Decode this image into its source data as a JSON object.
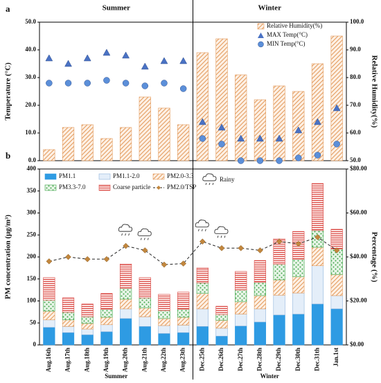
{
  "chart_data": [
    {
      "type": "combo",
      "panel_label": "a",
      "groups": [
        "Summer",
        "Winter"
      ],
      "ylabel": "Temperature (°C)",
      "y2label": "Relative Humidity(%)",
      "categories": [
        null,
        null,
        null,
        null,
        null,
        null,
        null,
        null,
        null,
        null,
        null,
        null,
        null,
        null,
        null,
        null
      ],
      "ylim": [
        0,
        50
      ],
      "yticks": [
        {
          "value": 0,
          "label": "0.0"
        },
        {
          "value": 10,
          "label": "10.0"
        },
        {
          "value": 20,
          "label": "20.0"
        },
        {
          "value": 30,
          "label": "30.0"
        },
        {
          "value": 40,
          "label": "40.0"
        },
        {
          "value": 50,
          "label": "50.0"
        }
      ],
      "y2lim": [
        50,
        100
      ],
      "y2ticks": [
        {
          "value": 50,
          "label": "50.0"
        },
        {
          "value": 60,
          "label": "60.0"
        },
        {
          "value": 70,
          "label": "70.0"
        },
        {
          "value": 80,
          "label": "80.0"
        },
        {
          "value": 90,
          "label": "90.0"
        },
        {
          "value": 100,
          "label": "100.0"
        }
      ],
      "series": [
        {
          "name": "Relative Humidity(%)",
          "type": "bar",
          "axis": "y2",
          "color": "#e39a5b",
          "pattern": "hatch",
          "values": [
            54,
            62,
            63,
            58,
            62,
            73,
            69,
            63,
            89,
            94,
            81,
            72,
            77,
            75,
            85,
            95
          ]
        },
        {
          "name": "MAX Temp(°C)",
          "type": "scatter",
          "marker": "triangle",
          "color": "#4a72c4",
          "values": [
            37,
            35,
            37,
            39,
            38,
            34,
            36,
            36,
            14,
            12,
            8,
            8,
            8,
            11,
            14,
            19
          ]
        },
        {
          "name": "MIN Temp(°C)",
          "type": "scatter",
          "marker": "circle",
          "color": "#5b8fd9",
          "values": [
            28,
            28,
            28,
            29,
            28,
            27,
            28,
            26,
            8,
            6,
            0,
            0,
            0,
            1,
            2,
            6
          ]
        }
      ]
    },
    {
      "type": "stacked_bar",
      "panel_label": "b",
      "groups": [
        "Summer",
        "Winter"
      ],
      "ylabel": "PM concentration (μg/m³)",
      "y2label": "Percentage (%)",
      "rainy_label": "Rainy",
      "rainy": [
        false,
        false,
        false,
        false,
        true,
        true,
        false,
        false,
        true,
        true,
        false,
        false,
        false,
        false,
        false,
        false
      ],
      "categories": [
        "Aug.16th",
        "Aug.17th",
        "Aug.18th",
        "Aug.19th",
        "Aug.20th",
        "Aug.21th",
        "Aug.22th",
        "Aug.23th",
        "Dec.25th",
        "Dec.26th",
        "Dec.27th",
        "Dec.28th",
        "Dec.29th",
        "Dec.30th",
        "Dec.31th",
        "Jan.1st"
      ],
      "ylim": [
        0,
        400
      ],
      "yticks": [
        0,
        50,
        100,
        150,
        200,
        250,
        300,
        350,
        400
      ],
      "y2lim": [
        0,
        80
      ],
      "y2ticks": [
        {
          "value": 0,
          "label": "$0.00"
        },
        {
          "value": 20,
          "label": "$20.00"
        },
        {
          "value": 40,
          "label": "$40.00"
        },
        {
          "value": 60,
          "label": "$60.00"
        },
        {
          "value": 80,
          "label": "$80.00"
        }
      ],
      "series": [
        {
          "name": "PM1.1",
          "type": "bar",
          "color": "#2e9be3",
          "pattern": "solid",
          "values": [
            40,
            28,
            23,
            30,
            60,
            42,
            26,
            28,
            42,
            20,
            43,
            52,
            68,
            70,
            93,
            82
          ]
        },
        {
          "name": "PM1.1-2.0",
          "type": "bar",
          "color": "#8fb4dc",
          "pattern": "light",
          "values": [
            17,
            14,
            13,
            16,
            22,
            22,
            18,
            17,
            40,
            18,
            27,
            30,
            45,
            48,
            87,
            30
          ]
        },
        {
          "name": "PM2.0-3.3",
          "type": "bar",
          "color": "#e39a5b",
          "pattern": "hatch",
          "values": [
            20,
            15,
            13,
            17,
            22,
            20,
            16,
            18,
            35,
            18,
            28,
            30,
            35,
            37,
            42,
            48
          ]
        },
        {
          "name": "PM3.3-7.0",
          "type": "bar",
          "color": "#3fa548",
          "pattern": "dots",
          "values": [
            25,
            17,
            15,
            18,
            25,
            23,
            18,
            18,
            24,
            13,
            27,
            30,
            35,
            40,
            38,
            58
          ]
        },
        {
          "name": "Coarse particle",
          "type": "bar",
          "color": "#d9443f",
          "pattern": "hlines",
          "values": [
            51,
            33,
            29,
            36,
            55,
            46,
            37,
            39,
            34,
            19,
            42,
            50,
            58,
            63,
            107,
            45
          ]
        },
        {
          "name": "PM2.0/TSP",
          "type": "line",
          "axis": "y2",
          "color": "#c2873e",
          "values": [
            38,
            40,
            39,
            39,
            45,
            43,
            36.5,
            37,
            47,
            44,
            44,
            43,
            47,
            46,
            49,
            43
          ]
        }
      ]
    }
  ]
}
